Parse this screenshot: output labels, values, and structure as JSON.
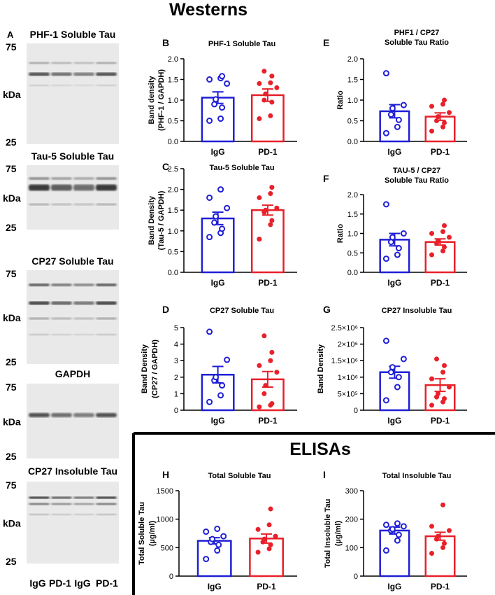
{
  "title": "Westerns",
  "elisa_title": "ELISAs",
  "colors": {
    "igg": "#1f1fd6",
    "pd1": "#e8202a",
    "axis": "#000000"
  },
  "blot_panel": {
    "letter": "A",
    "blots": [
      {
        "title": "PHF-1 Soluble Tau",
        "top": "75",
        "mid": "kDa",
        "bottom": "25"
      },
      {
        "title": "Tau-5 Soluble Tau",
        "top": "75",
        "mid": "kDa",
        "bottom": "25"
      },
      {
        "title": "CP27 Soluble Tau",
        "top": "75",
        "mid": "kDa",
        "bottom": "25"
      },
      {
        "title": "GAPDH",
        "top": "75",
        "mid": "kDa",
        "bottom": "25"
      },
      {
        "title": "CP27 Insoluble Tau",
        "top": "75",
        "mid": "kDa",
        "bottom": "25"
      }
    ],
    "lanes": [
      "IgG",
      "PD-1",
      "IgG",
      "PD-1"
    ]
  },
  "chart_data": [
    {
      "id": "B",
      "type": "bar",
      "letter": "B",
      "title": "PHF-1 Soluble Tau",
      "title2": "",
      "ylabel": "Band density",
      "ylabel2": "(PHF-1 / GAPDH)",
      "ylim": [
        0,
        2.0
      ],
      "ticks": [
        "0.0",
        "0.5",
        "1.0",
        "1.5",
        "2.0"
      ],
      "tick_values": [
        0,
        0.5,
        1.0,
        1.5,
        2.0
      ],
      "categories": [
        "IgG",
        "PD-1"
      ],
      "series": [
        {
          "name": "IgG",
          "mean": 1.06,
          "sem": 0.14,
          "points": [
            0.5,
            0.55,
            0.82,
            0.9,
            1.02,
            1.4,
            1.5,
            1.53,
            1.58
          ]
        },
        {
          "name": "PD-1",
          "mean": 1.12,
          "sem": 0.15,
          "points": [
            0.55,
            0.62,
            0.95,
            1.0,
            1.15,
            1.3,
            1.4,
            1.42,
            1.58,
            1.7
          ]
        }
      ]
    },
    {
      "id": "C",
      "type": "bar",
      "letter": "C",
      "title": "Tau-5 Soluble Tau",
      "title2": "",
      "ylabel": "Band Density",
      "ylabel2": "(Tau-5 / GAPDH)",
      "ylim": [
        0,
        2.5
      ],
      "ticks": [
        "0.0",
        "0.5",
        "1.0",
        "1.5",
        "2.0",
        "2.5"
      ],
      "tick_values": [
        0,
        0.5,
        1.0,
        1.5,
        2.0,
        2.5
      ],
      "categories": [
        "IgG",
        "PD-1"
      ],
      "series": [
        {
          "name": "IgG",
          "mean": 1.3,
          "sem": 0.15,
          "points": [
            0.85,
            0.95,
            1.05,
            1.2,
            1.35,
            1.55,
            1.8,
            2.0
          ]
        },
        {
          "name": "PD-1",
          "mean": 1.5,
          "sem": 0.12,
          "points": [
            0.8,
            1.15,
            1.25,
            1.45,
            1.5,
            1.55,
            1.8,
            1.9,
            2.05
          ]
        }
      ]
    },
    {
      "id": "D",
      "type": "bar",
      "letter": "D",
      "title": "CP27 Soluble Tau",
      "title2": "",
      "ylabel": "Band Density",
      "ylabel2": "(CP27 / GAPDH)",
      "ylim": [
        0,
        5
      ],
      "ticks": [
        "0",
        "1",
        "2",
        "3",
        "4",
        "5"
      ],
      "tick_values": [
        0,
        1,
        2,
        3,
        4,
        5
      ],
      "categories": [
        "IgG",
        "PD-1"
      ],
      "series": [
        {
          "name": "IgG",
          "mean": 2.15,
          "sem": 0.5,
          "points": [
            0.5,
            0.9,
            1.5,
            1.8,
            2.0,
            3.05,
            4.75
          ]
        },
        {
          "name": "PD-1",
          "mean": 1.87,
          "sem": 0.47,
          "points": [
            0.2,
            0.3,
            0.4,
            1.0,
            1.5,
            2.3,
            2.7,
            3.0,
            3.5,
            4.5
          ]
        }
      ]
    },
    {
      "id": "E",
      "type": "bar",
      "letter": "E",
      "title": "PHF1 / CP27",
      "title2": "Soluble Tau Ratio",
      "ylabel": "Ratio",
      "ylabel2": "",
      "ylim": [
        0,
        2.0
      ],
      "ticks": [
        "0.0",
        "0.5",
        "1.0",
        "1.5",
        "2.0"
      ],
      "tick_values": [
        0,
        0.5,
        1.0,
        1.5,
        2.0
      ],
      "categories": [
        "IgG",
        "PD-1"
      ],
      "series": [
        {
          "name": "IgG",
          "mean": 0.73,
          "sem": 0.16,
          "points": [
            0.2,
            0.35,
            0.52,
            0.65,
            0.8,
            0.88,
            1.65
          ]
        },
        {
          "name": "PD-1",
          "mean": 0.6,
          "sem": 0.09,
          "points": [
            0.25,
            0.35,
            0.45,
            0.5,
            0.6,
            0.7,
            0.85,
            0.9,
            1.0
          ]
        }
      ]
    },
    {
      "id": "F",
      "type": "bar",
      "letter": "F",
      "title": "TAU-5 / CP27",
      "title2": "Soluble Tau Ratio",
      "ylabel": "Ratio",
      "ylabel2": "",
      "ylim": [
        0,
        2.0
      ],
      "ticks": [
        "0.0",
        "0.5",
        "1.0",
        "1.5",
        "2.0"
      ],
      "tick_values": [
        0,
        0.5,
        1.0,
        1.5,
        2.0
      ],
      "categories": [
        "IgG",
        "PD-1"
      ],
      "series": [
        {
          "name": "IgG",
          "mean": 0.84,
          "sem": 0.16,
          "points": [
            0.35,
            0.45,
            0.62,
            0.78,
            0.9,
            1.0,
            1.75
          ]
        },
        {
          "name": "PD-1",
          "mean": 0.78,
          "sem": 0.08,
          "points": [
            0.45,
            0.55,
            0.65,
            0.75,
            0.8,
            0.9,
            1.0,
            1.05,
            1.2
          ]
        }
      ]
    },
    {
      "id": "G",
      "type": "bar",
      "letter": "G",
      "title": "CP27 Insoluble Tau",
      "title2": "",
      "ylabel": "Band Density",
      "ylabel2": "",
      "ylim": [
        0,
        2500000
      ],
      "ticks": [
        "0",
        "5×10⁵",
        "1×10⁶",
        "1.5×10⁶",
        "2×10⁶",
        "2.5×10⁶"
      ],
      "tick_values": [
        0,
        500000,
        1000000,
        1500000,
        2000000,
        2500000
      ],
      "categories": [
        "IgG",
        "PD-1"
      ],
      "series": [
        {
          "name": "IgG",
          "mean": 1150000,
          "sem": 180000,
          "points": [
            300000,
            700000,
            1000000,
            1150000,
            1300000,
            1550000,
            2100000
          ]
        },
        {
          "name": "PD-1",
          "mean": 760000,
          "sem": 190000,
          "points": [
            150000,
            250000,
            350000,
            400000,
            500000,
            700000,
            950000,
            1150000,
            1350000,
            1550000
          ]
        }
      ]
    },
    {
      "id": "H",
      "type": "bar",
      "letter": "H",
      "title": "Total Soluble Tau",
      "title2": "",
      "ylabel": "Total Soluble Tau",
      "ylabel2": "(µg/ml)",
      "ylim": [
        0,
        1500
      ],
      "ticks": [
        "0",
        "500",
        "1000",
        "1500"
      ],
      "tick_values": [
        0,
        500,
        1000,
        1500
      ],
      "categories": [
        "IgG",
        "PD-1"
      ],
      "series": [
        {
          "name": "IgG",
          "mean": 620,
          "sem": 55,
          "points": [
            300,
            450,
            550,
            600,
            650,
            700,
            780,
            830
          ]
        },
        {
          "name": "PD-1",
          "mean": 660,
          "sem": 80,
          "points": [
            420,
            480,
            550,
            600,
            650,
            700,
            820,
            900,
            1180
          ]
        }
      ]
    },
    {
      "id": "I",
      "type": "bar",
      "letter": "I",
      "title": "Total Insoluble Tau",
      "title2": "",
      "ylabel": "Total Insoluble Tau",
      "ylabel2": "(µg/ml)",
      "ylim": [
        0,
        300
      ],
      "ticks": [
        "0",
        "100",
        "200",
        "300"
      ],
      "tick_values": [
        0,
        100,
        200,
        300
      ],
      "categories": [
        "IgG",
        "PD-1"
      ],
      "series": [
        {
          "name": "IgG",
          "mean": 160,
          "sem": 12,
          "points": [
            90,
            125,
            145,
            160,
            165,
            175,
            180,
            185
          ]
        },
        {
          "name": "PD-1",
          "mean": 140,
          "sem": 14,
          "points": [
            80,
            100,
            115,
            130,
            140,
            160,
            175,
            250
          ]
        }
      ]
    }
  ]
}
